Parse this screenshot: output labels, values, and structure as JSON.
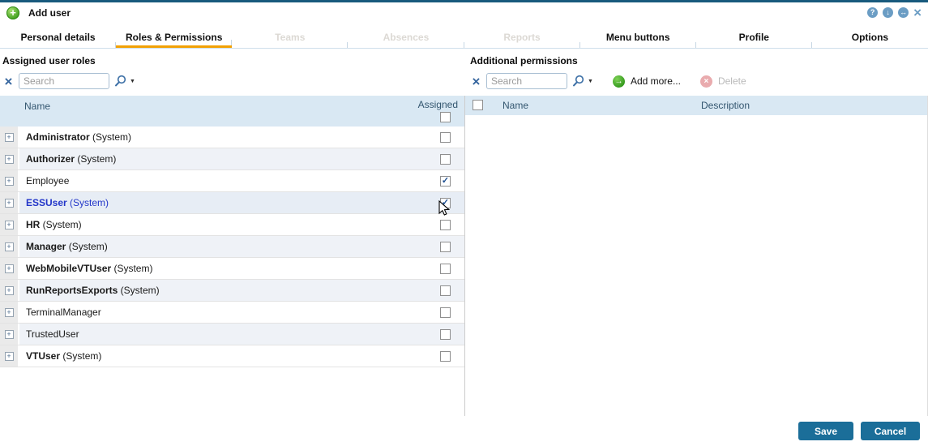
{
  "window": {
    "title": "Add user"
  },
  "icons": {
    "add_user": "+",
    "help": "?",
    "collapse": "↓",
    "resize": "↔",
    "close": "×",
    "clear": "×",
    "search_caret": "▼",
    "expand": "+",
    "check": "✓",
    "add_more": "→",
    "delete": "×"
  },
  "tabs": [
    {
      "label": "Personal details",
      "state": "enabled"
    },
    {
      "label": "Roles & Permissions",
      "state": "active"
    },
    {
      "label": "Teams",
      "state": "disabled"
    },
    {
      "label": "Absences",
      "state": "disabled"
    },
    {
      "label": "Reports",
      "state": "disabled"
    },
    {
      "label": "Menu buttons",
      "state": "enabled"
    },
    {
      "label": "Profile",
      "state": "enabled"
    },
    {
      "label": "Options",
      "state": "enabled"
    }
  ],
  "roles_panel": {
    "title": "Assigned user roles",
    "search_placeholder": "Search",
    "columns": {
      "name": "Name",
      "assigned": "Assigned"
    },
    "rows": [
      {
        "name": "Administrator",
        "suffix": "(System)",
        "bold": true,
        "checked": false,
        "selected": false
      },
      {
        "name": "Authorizer",
        "suffix": "(System)",
        "bold": true,
        "checked": false,
        "selected": false
      },
      {
        "name": "Employee",
        "suffix": "",
        "bold": false,
        "checked": true,
        "selected": false
      },
      {
        "name": "ESSUser",
        "suffix": "(System)",
        "bold": true,
        "checked": true,
        "selected": true
      },
      {
        "name": "HR",
        "suffix": "(System)",
        "bold": true,
        "checked": false,
        "selected": false
      },
      {
        "name": "Manager",
        "suffix": "(System)",
        "bold": true,
        "checked": false,
        "selected": false
      },
      {
        "name": "WebMobileVTUser",
        "suffix": "(System)",
        "bold": true,
        "checked": false,
        "selected": false
      },
      {
        "name": "RunReportsExports",
        "suffix": "(System)",
        "bold": true,
        "checked": false,
        "selected": false
      },
      {
        "name": "TerminalManager",
        "suffix": "",
        "bold": false,
        "checked": false,
        "selected": false
      },
      {
        "name": "TrustedUser",
        "suffix": "",
        "bold": false,
        "checked": false,
        "selected": false
      },
      {
        "name": "VTUser",
        "suffix": "(System)",
        "bold": true,
        "checked": false,
        "selected": false
      }
    ]
  },
  "permissions_panel": {
    "title": "Additional permissions",
    "search_placeholder": "Search",
    "add_more_label": "Add more...",
    "delete_label": "Delete",
    "columns": {
      "name": "Name",
      "description": "Description"
    },
    "rows": []
  },
  "footer": {
    "save_label": "Save",
    "cancel_label": "Cancel"
  },
  "colors": {
    "top_strip": "#185a7d",
    "accent_orange": "#f2a105",
    "table_header_bg": "#d9e8f3",
    "button_blue": "#1b6e99",
    "selected_row_text": "#2336c9",
    "selected_row_bg": "#e7edf5",
    "alt_row_bg": "#eff2f7",
    "window_icon_blue": "#6b9dc4",
    "search_icon_blue": "#3a6ea5",
    "add_green": "#3aa51e",
    "delete_pink": "#e9abae",
    "check_blue": "#1d4f91"
  }
}
